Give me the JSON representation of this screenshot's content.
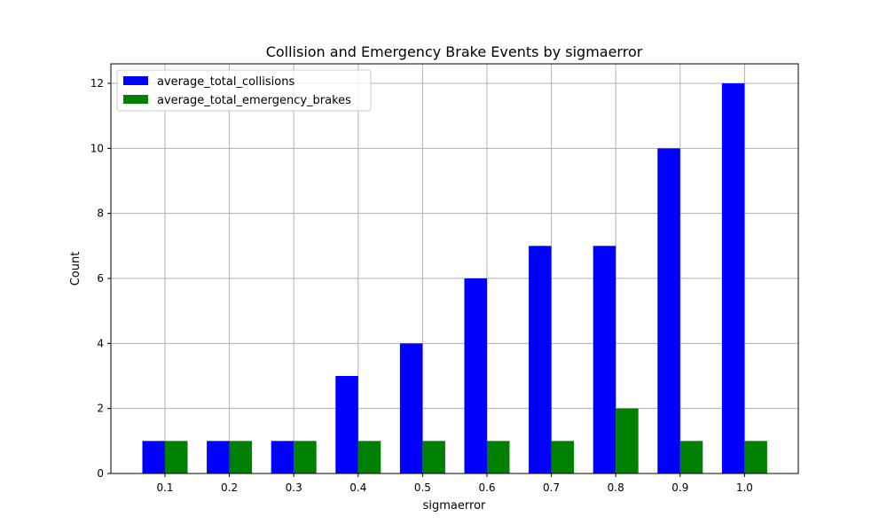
{
  "chart_data": {
    "type": "bar",
    "title": "Collision and Emergency Brake Events by sigmaerror",
    "xlabel": "sigmaerror",
    "ylabel": "Count",
    "categories": [
      "0.1",
      "0.2",
      "0.3",
      "0.4",
      "0.5",
      "0.6",
      "0.7",
      "0.8",
      "0.9",
      "1.0"
    ],
    "series": [
      {
        "name": "average_total_collisions",
        "color": "#0000ff",
        "values": [
          1,
          1,
          1,
          3,
          4,
          6,
          7,
          7,
          10,
          12
        ]
      },
      {
        "name": "average_total_emergency_brakes",
        "color": "#008000",
        "values": [
          1,
          1,
          1,
          1,
          1,
          1,
          1,
          2,
          1,
          1
        ]
      }
    ],
    "yticks": [
      "0",
      "2",
      "4",
      "6",
      "8",
      "10",
      "12"
    ],
    "ylim": [
      0,
      12.6
    ],
    "grid": true,
    "legend_position": "top-left"
  }
}
